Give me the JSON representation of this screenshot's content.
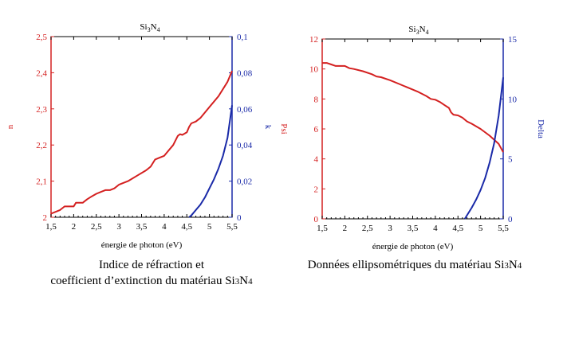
{
  "chart_data": [
    {
      "type": "line",
      "title": "Si3N4",
      "title_parts": {
        "main": "Si",
        "sub1": "3",
        "mid": "N",
        "sub2": "4"
      },
      "xlabel": "énergie de photon (eV)",
      "ylabel_left": "n",
      "ylabel_right": "k",
      "xlim": [
        1.5,
        5.5
      ],
      "ylim_left": [
        2,
        2.5
      ],
      "ylim_right": [
        0,
        0.1
      ],
      "x_ticks": [
        "1,5",
        "2",
        "2,5",
        "3",
        "3,5",
        "4",
        "4,5",
        "5",
        "5,5"
      ],
      "y_ticks_left": [
        "2",
        "2,1",
        "2,2",
        "2,3",
        "2,4",
        "2,5"
      ],
      "y_ticks_right": [
        "0",
        "0,02",
        "0,04",
        "0,06",
        "0,08",
        "0,1"
      ],
      "grid": false,
      "colors": {
        "left": "#d42020",
        "right": "#1a2aa8"
      },
      "series": [
        {
          "axis": "left",
          "color": "#d42020",
          "x": [
            1.5,
            1.6,
            1.7,
            1.8,
            1.9,
            2.0,
            2.05,
            2.2,
            2.3,
            2.4,
            2.5,
            2.6,
            2.7,
            2.8,
            2.9,
            3.0,
            3.2,
            3.4,
            3.6,
            3.7,
            3.75,
            3.8,
            3.9,
            4.0,
            4.1,
            4.2,
            4.3,
            4.35,
            4.4,
            4.5,
            4.55,
            4.6,
            4.7,
            4.8,
            5.0,
            5.2,
            5.4,
            5.5
          ],
          "y": [
            2.01,
            2.015,
            2.02,
            2.03,
            2.03,
            2.03,
            2.04,
            2.04,
            2.05,
            2.058,
            2.065,
            2.07,
            2.075,
            2.075,
            2.08,
            2.09,
            2.1,
            2.115,
            2.13,
            2.14,
            2.15,
            2.16,
            2.165,
            2.17,
            2.185,
            2.2,
            2.225,
            2.23,
            2.228,
            2.235,
            2.25,
            2.26,
            2.265,
            2.275,
            2.305,
            2.335,
            2.375,
            2.405
          ]
        },
        {
          "axis": "right",
          "color": "#1a2aa8",
          "x": [
            4.55,
            4.6,
            4.7,
            4.8,
            4.9,
            5.0,
            5.1,
            5.2,
            5.3,
            5.4,
            5.5
          ],
          "y": [
            0,
            0.001,
            0.004,
            0.007,
            0.011,
            0.016,
            0.021,
            0.027,
            0.034,
            0.044,
            0.062
          ]
        }
      ]
    },
    {
      "type": "line",
      "title": "Si3N4",
      "title_parts": {
        "main": "Si",
        "sub1": "3",
        "mid": "N",
        "sub2": "4"
      },
      "xlabel": "énergie de photon (eV)",
      "ylabel_left": "Psi",
      "ylabel_right": "Delta",
      "xlim": [
        1.5,
        5.5
      ],
      "ylim_left": [
        0,
        12
      ],
      "ylim_right": [
        0,
        15
      ],
      "x_ticks": [
        "1,5",
        "2",
        "2,5",
        "3",
        "3,5",
        "4",
        "4,5",
        "5",
        "5,5"
      ],
      "y_ticks_left": [
        "0",
        "2",
        "4",
        "6",
        "8",
        "10",
        "12"
      ],
      "y_ticks_right": [
        "0",
        "5",
        "10",
        "15"
      ],
      "grid": false,
      "colors": {
        "left": "#d42020",
        "right": "#1a2aa8"
      },
      "series": [
        {
          "axis": "left",
          "color": "#d42020",
          "x": [
            1.5,
            1.6,
            1.7,
            1.8,
            2.0,
            2.1,
            2.2,
            2.4,
            2.6,
            2.7,
            2.8,
            3.0,
            3.2,
            3.4,
            3.6,
            3.8,
            3.9,
            4.0,
            4.1,
            4.2,
            4.3,
            4.35,
            4.4,
            4.5,
            4.6,
            4.7,
            4.8,
            5.0,
            5.2,
            5.4,
            5.5
          ],
          "y": [
            10.4,
            10.4,
            10.3,
            10.2,
            10.2,
            10.05,
            10.0,
            9.85,
            9.65,
            9.5,
            9.45,
            9.25,
            9.0,
            8.75,
            8.5,
            8.2,
            8.0,
            7.95,
            7.8,
            7.6,
            7.4,
            7.1,
            6.95,
            6.9,
            6.75,
            6.5,
            6.35,
            6.0,
            5.55,
            5.0,
            4.45
          ]
        },
        {
          "axis": "right",
          "color": "#1a2aa8",
          "x": [
            4.65,
            4.7,
            4.8,
            4.9,
            5.0,
            5.1,
            5.2,
            5.3,
            5.4,
            5.5
          ],
          "y": [
            0,
            0.3,
            0.9,
            1.6,
            2.4,
            3.4,
            4.7,
            6.3,
            8.6,
            11.8
          ]
        }
      ]
    }
  ],
  "captions": {
    "left_line1": "Indice de réfraction et",
    "left_line2": "coefficient d’extinction du matériau Si",
    "left_sub1": "3",
    "left_mid": "N",
    "left_sub2": "4",
    "right_line1": "Données ellipsométriques du matériau Si",
    "right_sub1": "3",
    "right_mid": "N",
    "right_sub2": "4"
  }
}
